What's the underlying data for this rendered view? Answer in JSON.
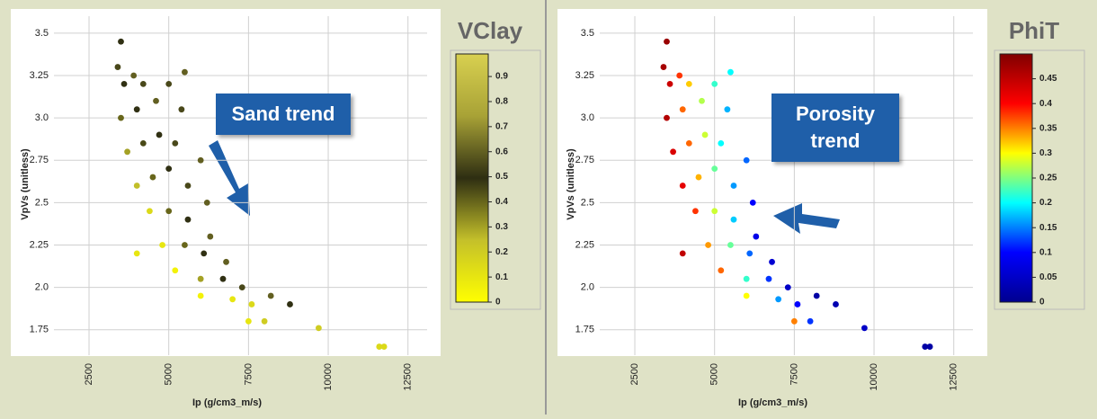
{
  "chart_data": [
    {
      "type": "scatter",
      "colorbar_title": "VClay",
      "annotation": "Sand trend",
      "x_label": "Ip (g/cm3_m/s)",
      "y_label": "VpVs (unitless)",
      "x": [
        3500,
        3400,
        3600,
        3900,
        4200,
        3500,
        4000,
        4600,
        5000,
        5500,
        5400,
        3700,
        4200,
        4700,
        5200,
        6000,
        4000,
        4500,
        5000,
        5600,
        6200,
        4400,
        5000,
        5600,
        6300,
        4800,
        5500,
        6100,
        6800,
        5200,
        6000,
        6700,
        7300,
        6000,
        7000,
        7600,
        8200,
        8800,
        8000,
        9700,
        11600,
        11750,
        4000,
        7500
      ],
      "values": [
        3.45,
        3.3,
        3.2,
        3.25,
        3.2,
        3.0,
        3.05,
        3.1,
        3.2,
        3.27,
        3.05,
        2.8,
        2.85,
        2.9,
        2.85,
        2.75,
        2.6,
        2.65,
        2.7,
        2.6,
        2.5,
        2.45,
        2.45,
        2.4,
        2.3,
        2.25,
        2.25,
        2.2,
        2.15,
        2.1,
        2.05,
        2.05,
        2.0,
        1.95,
        1.93,
        1.9,
        1.95,
        1.9,
        1.8,
        1.76,
        1.65,
        1.65,
        2.2,
        1.8
      ],
      "color_values": [
        0.5,
        0.55,
        0.5,
        0.6,
        0.55,
        0.4,
        0.5,
        0.6,
        0.55,
        0.6,
        0.55,
        0.3,
        0.45,
        0.5,
        0.55,
        0.6,
        0.25,
        0.4,
        0.5,
        0.55,
        0.6,
        0.15,
        0.4,
        0.5,
        0.6,
        0.1,
        0.4,
        0.5,
        0.6,
        0.05,
        0.3,
        0.5,
        0.55,
        0.05,
        0.1,
        0.15,
        0.6,
        0.5,
        0.2,
        0.2,
        0.15,
        0.15,
        0.1,
        0.1
      ],
      "colormap": [
        "#ffff00",
        "#c4c02a",
        "#2e2e12",
        "#a8a236",
        "#d8d050"
      ],
      "clim": [
        0,
        0.99
      ],
      "cticks": [
        0,
        0.1,
        0.2,
        0.3,
        0.4,
        0.5,
        0.6,
        0.7,
        0.8,
        0.9
      ],
      "xlim": [
        1400,
        13100
      ],
      "xticks": [
        2500,
        5000,
        7500,
        10000,
        12500
      ],
      "ylim": [
        1.6,
        3.6
      ],
      "yticks": [
        1.75,
        {
          "value": 2,
          "label": "2.0"
        },
        2.25,
        2.5,
        2.75,
        {
          "value": 3,
          "label": "3.0"
        },
        3.25,
        3.5
      ],
      "grid": true
    },
    {
      "type": "scatter",
      "colorbar_title": "PhiT",
      "annotation": "Porosity trend",
      "x_label": "Ip (g/cm3_m/s)",
      "y_label": "VpVs (unitless)",
      "x": [
        3500,
        3400,
        3600,
        3900,
        4200,
        3500,
        4000,
        4600,
        5000,
        5500,
        5400,
        3700,
        4200,
        4700,
        5200,
        6000,
        4000,
        4500,
        5000,
        5600,
        6200,
        4400,
        5000,
        5600,
        6300,
        4800,
        5500,
        6100,
        6800,
        5200,
        6000,
        6700,
        7300,
        6000,
        7000,
        7600,
        8200,
        8800,
        8000,
        9700,
        11600,
        11750,
        4000,
        7500
      ],
      "values": [
        3.45,
        3.3,
        3.2,
        3.25,
        3.2,
        3.0,
        3.05,
        3.1,
        3.2,
        3.27,
        3.05,
        2.8,
        2.85,
        2.9,
        2.85,
        2.75,
        2.6,
        2.65,
        2.7,
        2.6,
        2.5,
        2.45,
        2.45,
        2.4,
        2.3,
        2.25,
        2.25,
        2.2,
        2.15,
        2.1,
        2.05,
        2.05,
        2.0,
        1.95,
        1.93,
        1.9,
        1.95,
        1.9,
        1.8,
        1.76,
        1.65,
        1.65,
        2.2,
        1.8
      ],
      "color_values": [
        0.48,
        0.47,
        0.44,
        0.38,
        0.32,
        0.46,
        0.36,
        0.27,
        0.22,
        0.2,
        0.17,
        0.43,
        0.36,
        0.28,
        0.2,
        0.14,
        0.42,
        0.33,
        0.24,
        0.16,
        0.1,
        0.38,
        0.28,
        0.18,
        0.08,
        0.34,
        0.24,
        0.14,
        0.06,
        0.36,
        0.22,
        0.12,
        0.05,
        0.3,
        0.16,
        0.1,
        0.02,
        0.03,
        0.12,
        0.05,
        0.02,
        0.02,
        0.45,
        0.35
      ],
      "colormap": [
        "#00008f",
        "#0000ff",
        "#00ffff",
        "#ffff00",
        "#ff0000",
        "#800000"
      ],
      "clim": [
        0,
        0.5
      ],
      "cticks": [
        0,
        0.05,
        0.1,
        0.15,
        0.2,
        0.25,
        0.3,
        0.35,
        0.4,
        0.45
      ],
      "xlim": [
        1400,
        13100
      ],
      "xticks": [
        2500,
        5000,
        7500,
        10000,
        12500
      ],
      "ylim": [
        1.6,
        3.6
      ],
      "yticks": [
        1.75,
        {
          "value": 2,
          "label": "2.0"
        },
        2.25,
        2.5,
        2.75,
        {
          "value": 3,
          "label": "3.0"
        },
        3.25,
        3.5
      ],
      "grid": true
    }
  ]
}
